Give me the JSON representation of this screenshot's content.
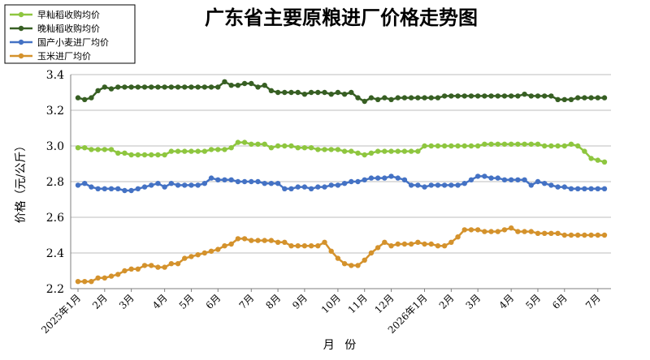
{
  "chart_data": {
    "type": "line",
    "title": "广东省主要原粮进厂价格走势图",
    "xlabel": "月 份",
    "ylabel": "价格（元/公斤）",
    "ylim": [
      2.2,
      3.4
    ],
    "yticks": [
      "2.2",
      "2.4",
      "2.6",
      "2.8",
      "3.0",
      "3.2",
      "3.4"
    ],
    "x_tick_labels": [
      {
        "i": 0,
        "label": "2025年1月"
      },
      {
        "i": 4,
        "label": "2月"
      },
      {
        "i": 8,
        "label": "3月"
      },
      {
        "i": 13,
        "label": "4月"
      },
      {
        "i": 17,
        "label": "5月"
      },
      {
        "i": 21,
        "label": "6月"
      },
      {
        "i": 26,
        "label": "7月"
      },
      {
        "i": 30,
        "label": "8月"
      },
      {
        "i": 34,
        "label": "9月"
      },
      {
        "i": 39,
        "label": "10月"
      },
      {
        "i": 43,
        "label": "11月"
      },
      {
        "i": 47,
        "label": "12月"
      },
      {
        "i": 52,
        "label": "2026年1月"
      },
      {
        "i": 56,
        "label": "2月"
      },
      {
        "i": 60,
        "label": "3月"
      },
      {
        "i": 65,
        "label": "4月"
      },
      {
        "i": 69,
        "label": "5月"
      },
      {
        "i": 73,
        "label": "6月"
      },
      {
        "i": 78,
        "label": "7月"
      }
    ],
    "grid": true,
    "legend_position": "top-left",
    "series": [
      {
        "name": "早籼稻收购均价",
        "color": "#8ec63f",
        "values": [
          2.99,
          2.99,
          2.98,
          2.98,
          2.98,
          2.98,
          2.96,
          2.96,
          2.95,
          2.95,
          2.95,
          2.95,
          2.95,
          2.95,
          2.97,
          2.97,
          2.97,
          2.97,
          2.97,
          2.97,
          2.98,
          2.98,
          2.98,
          2.99,
          3.02,
          3.02,
          3.01,
          3.01,
          3.01,
          2.99,
          3.0,
          3.0,
          3.0,
          2.99,
          2.99,
          2.99,
          2.98,
          2.98,
          2.98,
          2.98,
          2.97,
          2.97,
          2.96,
          2.95,
          2.96,
          2.97,
          2.97,
          2.97,
          2.97,
          2.97,
          2.97,
          2.97,
          3.0,
          3.0,
          3.0,
          3.0,
          3.0,
          3.0,
          3.0,
          3.0,
          3.0,
          3.01,
          3.01,
          3.01,
          3.01,
          3.01,
          3.01,
          3.01,
          3.01,
          3.01,
          3.0,
          3.0,
          3.0,
          3.0,
          3.01,
          3.0,
          2.97,
          2.93,
          2.92,
          2.91
        ]
      },
      {
        "name": "晚籼稻收购均价",
        "color": "#375f23",
        "values": [
          3.27,
          3.26,
          3.27,
          3.31,
          3.33,
          3.32,
          3.33,
          3.33,
          3.33,
          3.33,
          3.33,
          3.33,
          3.33,
          3.33,
          3.33,
          3.33,
          3.33,
          3.33,
          3.33,
          3.33,
          3.33,
          3.33,
          3.36,
          3.34,
          3.34,
          3.35,
          3.35,
          3.33,
          3.34,
          3.31,
          3.3,
          3.3,
          3.3,
          3.3,
          3.29,
          3.3,
          3.3,
          3.3,
          3.29,
          3.3,
          3.29,
          3.3,
          3.27,
          3.25,
          3.27,
          3.26,
          3.27,
          3.26,
          3.27,
          3.27,
          3.27,
          3.27,
          3.27,
          3.27,
          3.27,
          3.28,
          3.28,
          3.28,
          3.28,
          3.28,
          3.28,
          3.28,
          3.28,
          3.28,
          3.28,
          3.28,
          3.28,
          3.29,
          3.28,
          3.28,
          3.28,
          3.28,
          3.26,
          3.26,
          3.26,
          3.27,
          3.27,
          3.27,
          3.27,
          3.27
        ]
      },
      {
        "name": "国产小麦进厂均价",
        "color": "#4472c4",
        "values": [
          2.78,
          2.79,
          2.77,
          2.76,
          2.76,
          2.76,
          2.76,
          2.75,
          2.75,
          2.76,
          2.77,
          2.78,
          2.79,
          2.77,
          2.79,
          2.78,
          2.78,
          2.78,
          2.78,
          2.79,
          2.82,
          2.81,
          2.81,
          2.81,
          2.8,
          2.8,
          2.8,
          2.8,
          2.79,
          2.79,
          2.79,
          2.76,
          2.76,
          2.77,
          2.77,
          2.76,
          2.77,
          2.77,
          2.78,
          2.78,
          2.79,
          2.8,
          2.8,
          2.81,
          2.82,
          2.82,
          2.82,
          2.83,
          2.82,
          2.81,
          2.78,
          2.78,
          2.77,
          2.78,
          2.78,
          2.78,
          2.78,
          2.78,
          2.79,
          2.81,
          2.83,
          2.83,
          2.82,
          2.82,
          2.81,
          2.81,
          2.81,
          2.81,
          2.78,
          2.8,
          2.79,
          2.78,
          2.77,
          2.77,
          2.76,
          2.76,
          2.76,
          2.76,
          2.76,
          2.76
        ]
      },
      {
        "name": "玉米进厂均价",
        "color": "#d4922c",
        "values": [
          2.24,
          2.24,
          2.24,
          2.26,
          2.26,
          2.27,
          2.28,
          2.3,
          2.31,
          2.31,
          2.33,
          2.33,
          2.32,
          2.32,
          2.34,
          2.34,
          2.37,
          2.38,
          2.39,
          2.4,
          2.41,
          2.42,
          2.44,
          2.45,
          2.48,
          2.48,
          2.47,
          2.47,
          2.47,
          2.47,
          2.46,
          2.46,
          2.44,
          2.44,
          2.44,
          2.44,
          2.44,
          2.46,
          2.41,
          2.37,
          2.34,
          2.33,
          2.33,
          2.36,
          2.4,
          2.43,
          2.46,
          2.44,
          2.45,
          2.45,
          2.45,
          2.46,
          2.45,
          2.45,
          2.44,
          2.44,
          2.46,
          2.49,
          2.53,
          2.53,
          2.53,
          2.52,
          2.52,
          2.52,
          2.53,
          2.54,
          2.52,
          2.52,
          2.52,
          2.51,
          2.51,
          2.51,
          2.51,
          2.5,
          2.5,
          2.5,
          2.5,
          2.5,
          2.5,
          2.5
        ]
      }
    ]
  }
}
